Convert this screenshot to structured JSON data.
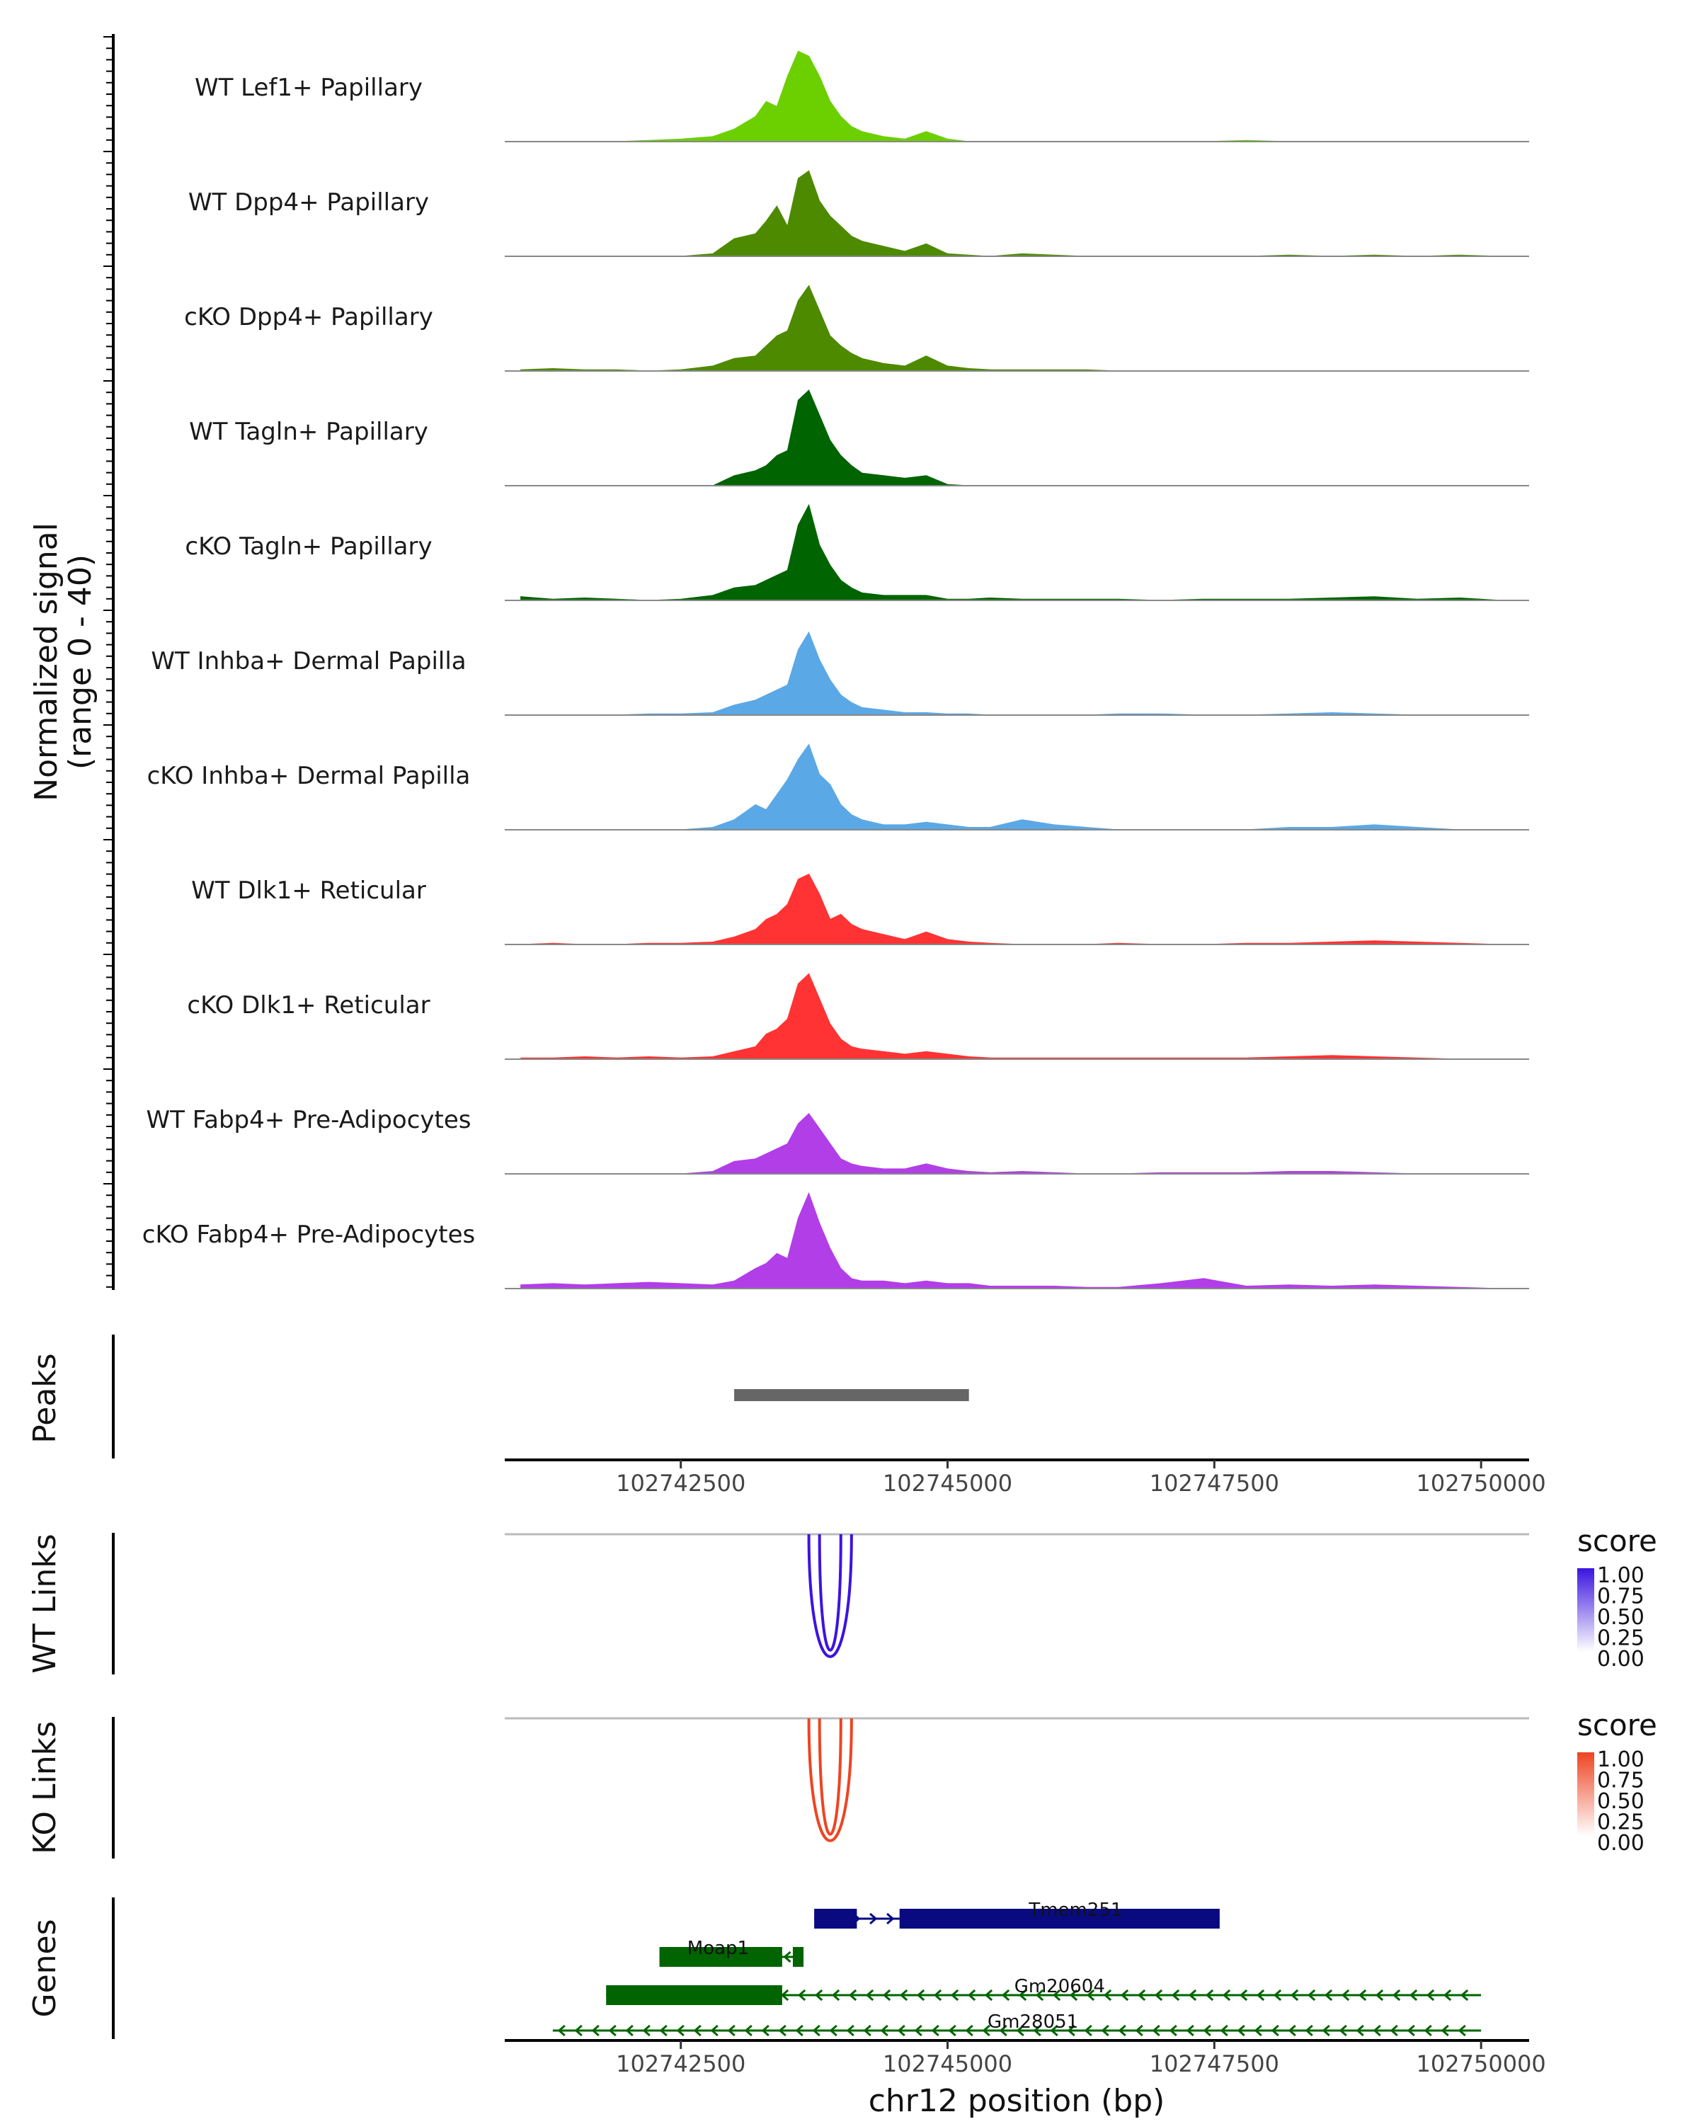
{
  "chart_data": {
    "type": "area",
    "title": "",
    "ylabel_line1": "Normalized signal",
    "ylabel_line2": "(range 0 - 40)",
    "xlabel": "chr12 position (bp)",
    "xlim": [
      102740850,
      102750450
    ],
    "ylim": [
      0,
      40
    ],
    "x_ticks": [
      {
        "value": 102742500,
        "label": "102742500"
      },
      {
        "value": 102745000,
        "label": "102745000"
      },
      {
        "value": 102747500,
        "label": "102747500"
      },
      {
        "value": 102750000,
        "label": "102750000"
      }
    ],
    "coverage_x": [
      102741000,
      102741300,
      102741600,
      102741900,
      102742200,
      102742500,
      102742800,
      102743000,
      102743200,
      102743300,
      102743400,
      102743500,
      102743600,
      102743700,
      102743800,
      102743900,
      102744000,
      102744100,
      102744200,
      102744400,
      102744600,
      102744800,
      102745000,
      102745200,
      102745400,
      102745700,
      102746000,
      102746300,
      102746600,
      102747000,
      102747400,
      102747800,
      102748200,
      102748600,
      102749000,
      102749400,
      102749800,
      102750200
    ],
    "series": [
      {
        "name": "WT Lef1+ Papillary",
        "color": "#6ccf00",
        "values": [
          0,
          0,
          0,
          0,
          0.5,
          1,
          2,
          5,
          10,
          16,
          14,
          26,
          36,
          34,
          26,
          16,
          10,
          6,
          4,
          2,
          1,
          4,
          1,
          0,
          0,
          0,
          0,
          0,
          0,
          0,
          0,
          0.5,
          0,
          0,
          0,
          0,
          0,
          0
        ]
      },
      {
        "name": "WT Dpp4+ Papillary",
        "color": "#4e8a00",
        "values": [
          0,
          0,
          0,
          0,
          0,
          0,
          1,
          7,
          9,
          14,
          20,
          12,
          31,
          34,
          22,
          16,
          12,
          8,
          6,
          4,
          2,
          5,
          1,
          0.5,
          0,
          1,
          0.5,
          0,
          0,
          0,
          0,
          0,
          0.5,
          0,
          0.5,
          0,
          0.5,
          0
        ]
      },
      {
        "name": "cKO Dpp4+ Papillary",
        "color": "#4e8a00",
        "values": [
          0.5,
          1,
          0.5,
          0.5,
          0,
          0.5,
          2,
          5,
          6,
          10,
          14,
          16,
          28,
          34,
          24,
          14,
          10,
          7,
          5,
          3,
          2,
          6,
          2,
          1,
          0.5,
          0.5,
          0.5,
          0.5,
          0,
          0,
          0,
          0,
          0,
          0,
          0,
          0,
          0,
          0
        ]
      },
      {
        "name": "WT Tagln+ Papillary",
        "color": "#006400",
        "values": [
          0,
          0,
          0,
          0,
          0,
          0,
          0,
          4,
          6,
          8,
          12,
          14,
          34,
          38,
          28,
          18,
          12,
          8,
          5,
          4,
          3,
          4,
          0.5,
          0,
          0,
          0,
          0,
          0,
          0,
          0,
          0,
          0,
          0,
          0,
          0,
          0,
          0,
          0
        ]
      },
      {
        "name": "cKO Tagln+ Papillary",
        "color": "#006400",
        "values": [
          1.5,
          0.5,
          1,
          0.5,
          0,
          0.5,
          2,
          5,
          6,
          8,
          10,
          12,
          30,
          38,
          22,
          14,
          8,
          5,
          3,
          2,
          2,
          2,
          0.5,
          0.5,
          1,
          0.5,
          0.5,
          0.5,
          0.5,
          0,
          0.5,
          0.5,
          0.5,
          1,
          1.5,
          0.5,
          1,
          0
        ]
      },
      {
        "name": "WT Inhba+ Dermal Papilla",
        "color": "#5ba8e6",
        "values": [
          0,
          0,
          0,
          0,
          0.5,
          0.5,
          1,
          4,
          6,
          8,
          10,
          12,
          26,
          33,
          22,
          14,
          8,
          5,
          3,
          2,
          1,
          1,
          0.5,
          0.5,
          0,
          0,
          0,
          0,
          0.5,
          0.5,
          0,
          0,
          0.5,
          1,
          0.5,
          0,
          0,
          0
        ]
      },
      {
        "name": "cKO Inhba+ Dermal Papilla",
        "color": "#5ba8e6",
        "values": [
          0,
          0,
          0,
          0,
          0,
          0,
          1,
          4,
          10,
          8,
          14,
          20,
          28,
          34,
          22,
          18,
          10,
          6,
          4,
          2,
          2,
          3,
          2,
          1,
          1,
          4,
          2,
          1,
          0,
          0,
          0,
          0,
          1,
          1,
          2,
          1,
          0,
          0
        ]
      },
      {
        "name": "WT Dlk1+ Reticular",
        "color": "#ff3333",
        "values": [
          0,
          0.5,
          0,
          0,
          0.5,
          0.5,
          1,
          3,
          6,
          10,
          12,
          16,
          26,
          28,
          20,
          10,
          12,
          8,
          6,
          4,
          2,
          5,
          2,
          1,
          0.5,
          0,
          0,
          0,
          0.5,
          0,
          0,
          0.5,
          0.5,
          1,
          1.5,
          1,
          0.5,
          0
        ]
      },
      {
        "name": "cKO Dlk1+ Reticular",
        "color": "#ff3333",
        "values": [
          0.5,
          0.5,
          1,
          0.5,
          1,
          0.5,
          1,
          3,
          5,
          10,
          12,
          16,
          30,
          34,
          24,
          14,
          8,
          5,
          4,
          3,
          2,
          3,
          2,
          1,
          0.5,
          0.5,
          0.5,
          0.5,
          0.5,
          0.5,
          0.5,
          0.5,
          1,
          1.5,
          1,
          0.5,
          0,
          0
        ]
      },
      {
        "name": "WT Fabp4+ Pre-Adipocytes",
        "color": "#b23ee8",
        "values": [
          0,
          0,
          0,
          0,
          0,
          0,
          1,
          5,
          6,
          8,
          10,
          12,
          20,
          24,
          18,
          12,
          6,
          4,
          3,
          2,
          2,
          4,
          2,
          1,
          0.5,
          1,
          0.5,
          0,
          0,
          0.5,
          0.5,
          0.5,
          1,
          1,
          0.5,
          0,
          0,
          0
        ]
      },
      {
        "name": "cKO Fabp4+ Pre-Adipocytes",
        "color": "#b23ee8",
        "values": [
          1.5,
          2,
          1.5,
          2,
          2.5,
          2,
          1.5,
          3,
          8,
          10,
          14,
          12,
          28,
          38,
          26,
          16,
          8,
          4,
          3,
          3,
          2,
          3,
          2,
          2,
          1,
          1,
          1,
          0.5,
          0.5,
          2,
          4,
          1,
          1.5,
          1,
          1.5,
          1,
          0.5,
          0
        ]
      }
    ],
    "peaks": {
      "label": "Peaks",
      "regions": [
        {
          "start": 102743000,
          "end": 102745200
        }
      ]
    },
    "links": [
      {
        "label": "WT Links",
        "color": "#3c14e0",
        "arcs": [
          {
            "start": 102743700,
            "end": 102744100,
            "score": 0.85
          },
          {
            "start": 102743800,
            "end": 102744000,
            "score": 0.8
          }
        ],
        "legend_title": "score",
        "legend_ticks": [
          "1.00",
          "0.75",
          "0.50",
          "0.25",
          "0.00"
        ],
        "legend_top_color": "#3c14e0"
      },
      {
        "label": "KO Links",
        "color": "#ee4422",
        "arcs": [
          {
            "start": 102743700,
            "end": 102744100,
            "score": 0.85
          },
          {
            "start": 102743800,
            "end": 102744000,
            "score": 0.8
          }
        ],
        "legend_title": "score",
        "legend_ticks": [
          "1.00",
          "0.75",
          "0.50",
          "0.25",
          "0.00"
        ],
        "legend_top_color": "#ee4422"
      }
    ],
    "genes": {
      "label": "Genes",
      "items": [
        {
          "name": "Tmem251",
          "color": "#0a0a80",
          "strand": "+",
          "start": 102743750,
          "end": 102747550,
          "exons": [
            {
              "start": 102743750,
              "end": 102744150
            },
            {
              "start": 102744550,
              "end": 102747550
            }
          ]
        },
        {
          "name": "Moap1",
          "color": "#006400",
          "strand": "-",
          "start": 102742300,
          "end": 102743650,
          "exons": [
            {
              "start": 102742300,
              "end": 102743450
            },
            {
              "start": 102743550,
              "end": 102743650
            }
          ]
        },
        {
          "name": "Gm20604",
          "color": "#006400",
          "strand": "-",
          "start": 102741800,
          "end": 102750000,
          "exons": [
            {
              "start": 102741800,
              "end": 102743450
            }
          ]
        },
        {
          "name": "Gm28051",
          "color": "#006400",
          "strand": "-",
          "start": 102741300,
          "end": 102750000,
          "exons": []
        }
      ]
    }
  }
}
